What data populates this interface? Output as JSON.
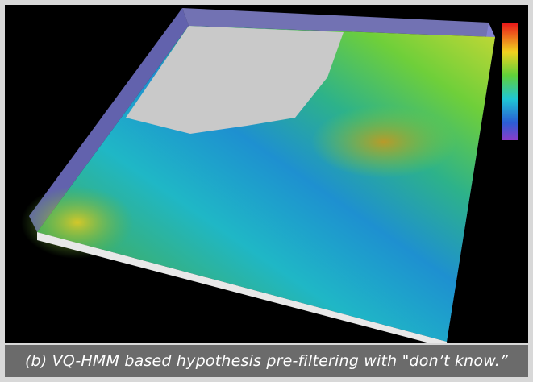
{
  "caption": "(b) VQ-HMM based hypothesis pre-filtering with \"don’t know.”"
}
